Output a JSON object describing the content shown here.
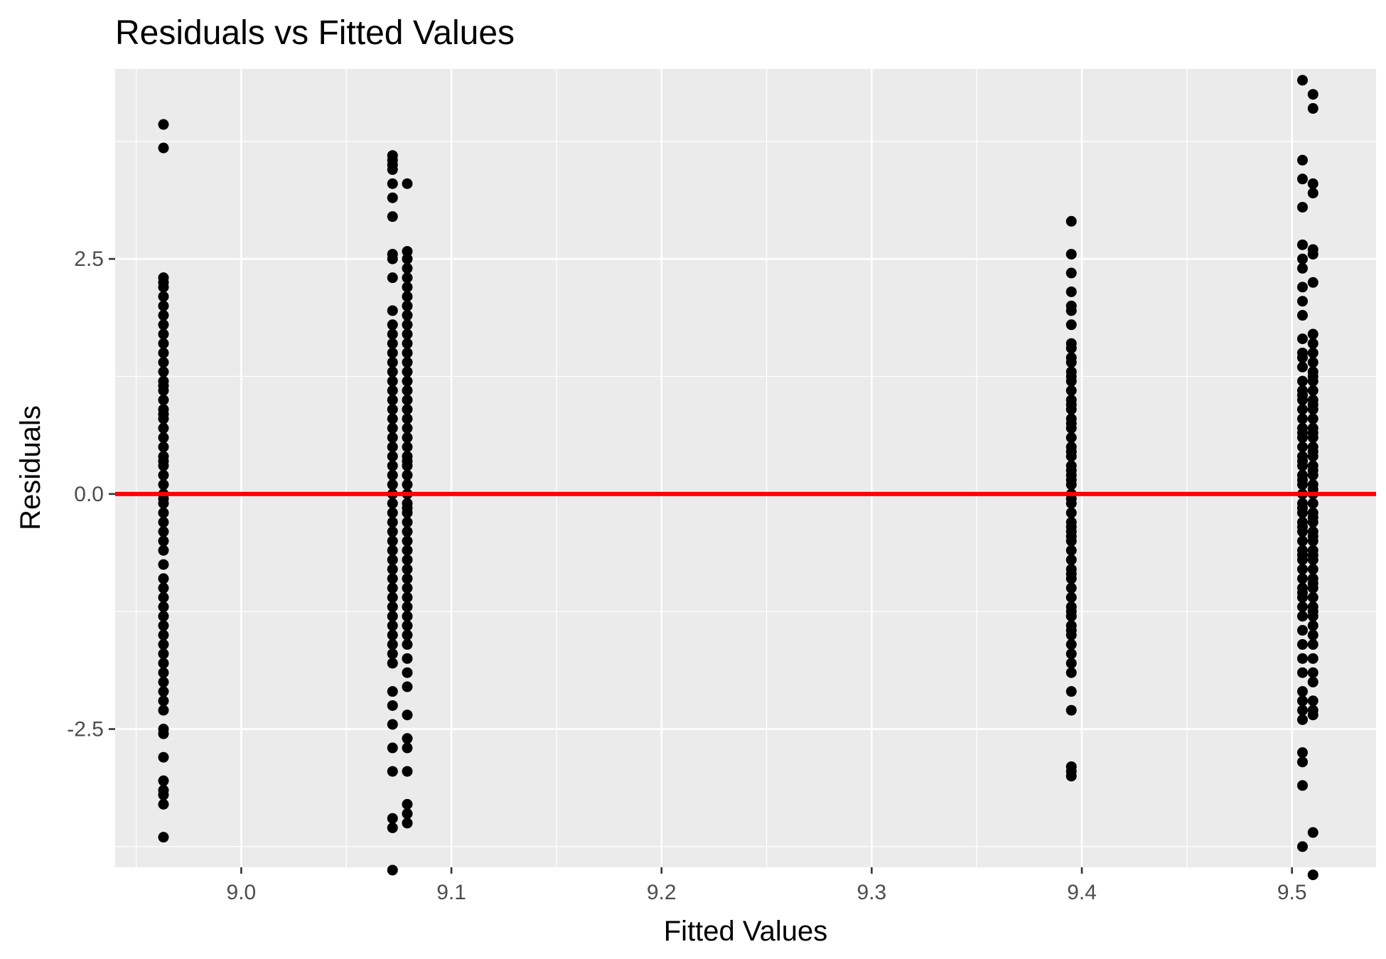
{
  "chart_data": {
    "type": "scatter",
    "title": "Residuals vs Fitted Values",
    "xlabel": "Fitted Values",
    "ylabel": "Residuals",
    "xlim": [
      8.94,
      9.54
    ],
    "ylim": [
      -3.97,
      4.52
    ],
    "x_ticks": [
      9.0,
      9.1,
      9.2,
      9.3,
      9.4,
      9.5
    ],
    "x_tick_labels": [
      "9.0",
      "9.1",
      "9.2",
      "9.3",
      "9.4",
      "9.5"
    ],
    "y_ticks": [
      -2.5,
      0.0,
      2.5
    ],
    "y_tick_labels": [
      "-2.5",
      "0.0",
      "2.5"
    ],
    "grid": true,
    "legend": "none",
    "reference_line": {
      "y": 0,
      "color": "#ff0000"
    },
    "point_color": "#000000",
    "panel_color": "#ebebeb",
    "series": [
      {
        "x": [
          8.963,
          8.963,
          8.963,
          8.963,
          8.963,
          8.963,
          8.963,
          8.963,
          8.963,
          8.963,
          8.963,
          8.963,
          8.963,
          8.963,
          8.963,
          8.963,
          8.963,
          8.963,
          8.963,
          8.963,
          8.963,
          8.963,
          8.963,
          8.963,
          8.963,
          8.963,
          8.963,
          8.963,
          8.963,
          8.963,
          8.963,
          8.963,
          8.963,
          8.963,
          8.963,
          8.963,
          8.963,
          8.963,
          8.963,
          8.963,
          8.963,
          8.963,
          8.963,
          8.963,
          8.963,
          8.963,
          8.963,
          8.963,
          8.963,
          8.963,
          8.963,
          8.963,
          8.963,
          8.963,
          8.963,
          8.963,
          8.963,
          8.963,
          8.963,
          8.963,
          8.963,
          9.072,
          9.072,
          9.072,
          9.072,
          9.072,
          9.072,
          9.072,
          9.072,
          9.072,
          9.072,
          9.072,
          9.072,
          9.072,
          9.072,
          9.072,
          9.072,
          9.072,
          9.072,
          9.072,
          9.072,
          9.072,
          9.072,
          9.072,
          9.072,
          9.072,
          9.072,
          9.072,
          9.072,
          9.072,
          9.072,
          9.072,
          9.072,
          9.072,
          9.072,
          9.072,
          9.072,
          9.072,
          9.072,
          9.072,
          9.072,
          9.072,
          9.072,
          9.072,
          9.072,
          9.072,
          9.072,
          9.072,
          9.072,
          9.072,
          9.072,
          9.072,
          9.072,
          9.072,
          9.072,
          9.072,
          9.072,
          9.079,
          9.079,
          9.079,
          9.079,
          9.079,
          9.079,
          9.079,
          9.079,
          9.079,
          9.079,
          9.079,
          9.079,
          9.079,
          9.079,
          9.079,
          9.079,
          9.079,
          9.079,
          9.079,
          9.079,
          9.079,
          9.079,
          9.079,
          9.079,
          9.079,
          9.079,
          9.079,
          9.079,
          9.079,
          9.079,
          9.079,
          9.079,
          9.079,
          9.079,
          9.079,
          9.079,
          9.079,
          9.079,
          9.079,
          9.079,
          9.079,
          9.079,
          9.079,
          9.079,
          9.079,
          9.079,
          9.079,
          9.079,
          9.079,
          9.079,
          9.079,
          9.079,
          9.079,
          9.079,
          9.079,
          9.079,
          9.395,
          9.395,
          9.395,
          9.395,
          9.395,
          9.395,
          9.395,
          9.395,
          9.395,
          9.395,
          9.395,
          9.395,
          9.395,
          9.395,
          9.395,
          9.395,
          9.395,
          9.395,
          9.395,
          9.395,
          9.395,
          9.395,
          9.395,
          9.395,
          9.395,
          9.395,
          9.395,
          9.395,
          9.395,
          9.395,
          9.395,
          9.395,
          9.395,
          9.395,
          9.395,
          9.395,
          9.395,
          9.395,
          9.395,
          9.395,
          9.395,
          9.395,
          9.395,
          9.395,
          9.395,
          9.395,
          9.395,
          9.395,
          9.395,
          9.395,
          9.395,
          9.395,
          9.395,
          9.395,
          9.395,
          9.395,
          9.395,
          9.395,
          9.395,
          9.395,
          9.395,
          9.505,
          9.505,
          9.505,
          9.505,
          9.505,
          9.505,
          9.505,
          9.505,
          9.505,
          9.505,
          9.505,
          9.505,
          9.505,
          9.505,
          9.505,
          9.505,
          9.505,
          9.505,
          9.505,
          9.505,
          9.505,
          9.505,
          9.505,
          9.505,
          9.505,
          9.505,
          9.505,
          9.505,
          9.505,
          9.505,
          9.505,
          9.505,
          9.505,
          9.505,
          9.505,
          9.505,
          9.505,
          9.505,
          9.505,
          9.505,
          9.505,
          9.505,
          9.505,
          9.505,
          9.505,
          9.505,
          9.505,
          9.505,
          9.505,
          9.505,
          9.505,
          9.505,
          9.505,
          9.505,
          9.505,
          9.505,
          9.505,
          9.505,
          9.505,
          9.505,
          9.51,
          9.51,
          9.51,
          9.51,
          9.51,
          9.51,
          9.51,
          9.51,
          9.51,
          9.51,
          9.51,
          9.51,
          9.51,
          9.51,
          9.51,
          9.51,
          9.51,
          9.51,
          9.51,
          9.51,
          9.51,
          9.51,
          9.51,
          9.51,
          9.51,
          9.51,
          9.51,
          9.51,
          9.51,
          9.51,
          9.51,
          9.51,
          9.51,
          9.51,
          9.51,
          9.51,
          9.51,
          9.51,
          9.51,
          9.51,
          9.51,
          9.51,
          9.51,
          9.51,
          9.51,
          9.51,
          9.51,
          9.51,
          9.51,
          9.51,
          9.51,
          9.51,
          9.51,
          9.51,
          9.51,
          9.51,
          9.51,
          9.51,
          9.51,
          9.51
        ],
        "y": [
          3.93,
          3.68,
          2.3,
          2.2,
          2.1,
          2.0,
          1.9,
          1.8,
          1.7,
          1.6,
          1.5,
          1.4,
          1.3,
          1.2,
          1.1,
          1.0,
          0.9,
          0.8,
          0.7,
          0.6,
          0.5,
          0.4,
          0.3,
          0.2,
          0.1,
          0.0,
          -0.1,
          -0.2,
          -0.3,
          -0.4,
          -0.5,
          -0.6,
          -0.9,
          -1.0,
          -1.1,
          -1.2,
          -1.3,
          -1.4,
          -1.5,
          -1.6,
          -1.7,
          -1.8,
          -1.9,
          -2.0,
          -2.1,
          -2.2,
          -2.3,
          -2.5,
          -2.55,
          -2.8,
          -3.05,
          -3.15,
          -3.2,
          -3.3,
          -3.65,
          2.25,
          1.15,
          0.85,
          0.35,
          -0.05,
          -0.75,
          -4.0,
          -3.55,
          -3.45,
          -2.95,
          -2.7,
          -2.45,
          -2.25,
          -2.1,
          -1.8,
          -1.7,
          -1.6,
          -1.5,
          -1.4,
          -1.3,
          -1.2,
          -1.1,
          -1.0,
          -0.9,
          -0.8,
          -0.7,
          -0.6,
          -0.5,
          -0.4,
          -0.3,
          -0.2,
          -0.1,
          0.0,
          0.1,
          0.2,
          0.3,
          0.4,
          0.5,
          0.6,
          0.7,
          0.8,
          0.9,
          1.0,
          1.1,
          1.2,
          1.3,
          1.4,
          1.5,
          1.6,
          1.7,
          1.8,
          1.95,
          2.3,
          2.5,
          2.55,
          2.95,
          3.15,
          3.3,
          3.5,
          3.6,
          3.55,
          3.45,
          -3.5,
          -3.4,
          -3.3,
          -2.95,
          -2.7,
          -2.6,
          -2.35,
          -2.05,
          -1.9,
          -1.75,
          -1.6,
          -1.5,
          -1.4,
          -1.3,
          -1.2,
          -1.1,
          -1.0,
          -0.9,
          -0.8,
          -0.7,
          -0.6,
          -0.5,
          -0.4,
          -0.3,
          -0.2,
          -0.1,
          0.0,
          0.1,
          0.2,
          0.3,
          0.4,
          0.5,
          0.6,
          0.7,
          0.8,
          0.9,
          1.0,
          1.1,
          1.2,
          1.3,
          1.4,
          1.5,
          1.6,
          1.7,
          1.8,
          1.9,
          2.0,
          2.1,
          2.2,
          2.3,
          2.4,
          2.5,
          2.58,
          3.3,
          -0.15,
          0.35,
          2.9,
          2.55,
          2.35,
          2.15,
          2.0,
          1.95,
          1.8,
          1.6,
          1.45,
          1.4,
          1.3,
          1.2,
          1.1,
          1.0,
          0.9,
          0.8,
          0.7,
          0.6,
          0.5,
          0.4,
          0.3,
          0.2,
          0.1,
          0.0,
          -0.1,
          -0.2,
          -0.3,
          -0.4,
          -0.5,
          -0.6,
          -0.7,
          -0.8,
          -0.9,
          -1.0,
          -1.1,
          -1.2,
          -1.3,
          -1.4,
          -1.5,
          -1.6,
          -1.7,
          -1.8,
          -1.9,
          -2.1,
          -2.3,
          -2.9,
          -2.95,
          -3.0,
          0.25,
          -0.45,
          0.75,
          -1.25,
          1.55,
          -0.05,
          0.95,
          -0.85,
          0.45,
          -0.35,
          1.25,
          -1.45,
          0.15,
          4.4,
          3.55,
          3.35,
          3.05,
          2.65,
          2.5,
          2.4,
          2.2,
          2.05,
          1.9,
          1.65,
          1.5,
          1.35,
          1.2,
          1.1,
          1.0,
          0.9,
          0.8,
          0.7,
          0.6,
          0.5,
          0.4,
          0.3,
          0.2,
          0.1,
          0.0,
          -0.1,
          -0.2,
          -0.3,
          -0.4,
          -0.5,
          -0.6,
          -0.7,
          -0.8,
          -0.9,
          -1.0,
          -1.1,
          -1.2,
          -1.3,
          -1.45,
          -1.6,
          -1.75,
          -1.9,
          -2.1,
          -2.2,
          -2.3,
          -2.4,
          -2.75,
          -2.85,
          -3.1,
          -3.75,
          1.45,
          0.65,
          -0.65,
          -0.35,
          0.35,
          -1.05,
          1.05,
          0.15,
          -0.15,
          4.25,
          4.1,
          3.3,
          3.2,
          2.6,
          2.55,
          2.25,
          1.7,
          1.6,
          1.5,
          1.4,
          1.3,
          1.2,
          1.1,
          1.0,
          0.9,
          0.8,
          0.7,
          0.6,
          0.5,
          0.4,
          0.3,
          0.2,
          0.1,
          0.0,
          -0.1,
          -0.2,
          -0.3,
          -0.4,
          -0.5,
          -0.6,
          -0.7,
          -0.8,
          -0.9,
          -1.0,
          -1.1,
          -1.2,
          -1.3,
          -1.4,
          -1.5,
          -1.6,
          -1.75,
          -1.9,
          -2.0,
          -2.2,
          -2.3,
          -2.35,
          -3.6,
          -4.05,
          0.25,
          -0.25,
          0.65,
          -0.65,
          0.95,
          -0.95,
          1.25,
          -1.25,
          0.45,
          -0.45,
          0.05
        ]
      }
    ]
  }
}
